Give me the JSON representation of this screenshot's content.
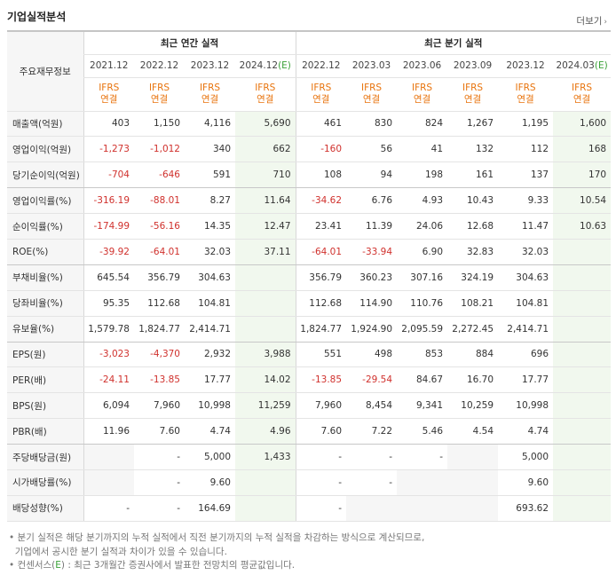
{
  "header": {
    "title": "기업실적분석",
    "more": "더보기",
    "more_icon": "chevron-right-icon"
  },
  "groups": {
    "annual": "최근 연간 실적",
    "quarter": "최근 분기 실적"
  },
  "corner": "주요재무정보",
  "periods": [
    {
      "label": "2021.12",
      "est": ""
    },
    {
      "label": "2022.12",
      "est": ""
    },
    {
      "label": "2023.12",
      "est": ""
    },
    {
      "label": "2024.12",
      "est": "(E)"
    },
    {
      "label": "2022.12",
      "est": ""
    },
    {
      "label": "2023.03",
      "est": ""
    },
    {
      "label": "2023.06",
      "est": ""
    },
    {
      "label": "2023.09",
      "est": ""
    },
    {
      "label": "2023.12",
      "est": ""
    },
    {
      "label": "2024.03",
      "est": "(E)"
    }
  ],
  "ifrs": {
    "line1": "IFRS",
    "line2": "연결"
  },
  "rows": [
    {
      "label": "매출액(억원)",
      "values": [
        "403",
        "1,150",
        "4,116",
        "5,690",
        "461",
        "830",
        "824",
        "1,267",
        "1,195",
        "1,600"
      ]
    },
    {
      "label": "영업이익(억원)",
      "values": [
        "-1,273",
        "-1,012",
        "340",
        "662",
        "-160",
        "56",
        "41",
        "132",
        "112",
        "168"
      ]
    },
    {
      "label": "당기순이익(억원)",
      "values": [
        "-704",
        "-646",
        "591",
        "710",
        "108",
        "94",
        "198",
        "161",
        "137",
        "170"
      ]
    },
    {
      "label": "영업이익률(%)",
      "values": [
        "-316.19",
        "-88.01",
        "8.27",
        "11.64",
        "-34.62",
        "6.76",
        "4.93",
        "10.43",
        "9.33",
        "10.54"
      ]
    },
    {
      "label": "순이익률(%)",
      "values": [
        "-174.99",
        "-56.16",
        "14.35",
        "12.47",
        "23.41",
        "11.39",
        "24.06",
        "12.68",
        "11.47",
        "10.63"
      ]
    },
    {
      "label": "ROE(%)",
      "values": [
        "-39.92",
        "-64.01",
        "32.03",
        "37.11",
        "-64.01",
        "-33.94",
        "6.90",
        "32.83",
        "32.03",
        ""
      ]
    },
    {
      "label": "부채비율(%)",
      "values": [
        "645.54",
        "356.79",
        "304.63",
        "",
        "356.79",
        "360.23",
        "307.16",
        "324.19",
        "304.63",
        ""
      ]
    },
    {
      "label": "당좌비율(%)",
      "values": [
        "95.35",
        "112.68",
        "104.81",
        "",
        "112.68",
        "114.90",
        "110.76",
        "108.21",
        "104.81",
        ""
      ]
    },
    {
      "label": "유보율(%)",
      "values": [
        "1,579.78",
        "1,824.77",
        "2,414.71",
        "",
        "1,824.77",
        "1,924.90",
        "2,095.59",
        "2,272.45",
        "2,414.71",
        ""
      ]
    },
    {
      "label": "EPS(원)",
      "values": [
        "-3,023",
        "-4,370",
        "2,932",
        "3,988",
        "551",
        "498",
        "853",
        "884",
        "696",
        ""
      ]
    },
    {
      "label": "PER(배)",
      "values": [
        "-24.11",
        "-13.85",
        "17.77",
        "14.02",
        "-13.85",
        "-29.54",
        "84.67",
        "16.70",
        "17.77",
        ""
      ]
    },
    {
      "label": "BPS(원)",
      "values": [
        "6,094",
        "7,960",
        "10,998",
        "11,259",
        "7,960",
        "8,454",
        "9,341",
        "10,259",
        "10,998",
        ""
      ]
    },
    {
      "label": "PBR(배)",
      "values": [
        "11.96",
        "7.60",
        "4.74",
        "4.96",
        "7.60",
        "7.22",
        "5.46",
        "4.54",
        "4.74",
        ""
      ]
    },
    {
      "label": "주당배당금(원)",
      "values": [
        "",
        "-",
        "5,000",
        "1,433",
        "-",
        "-",
        "-",
        "",
        "5,000",
        ""
      ]
    },
    {
      "label": "시가배당률(%)",
      "values": [
        "",
        "-",
        "9.60",
        "",
        "-",
        "-",
        "",
        "",
        "9.60",
        ""
      ]
    },
    {
      "label": "배당성향(%)",
      "values": [
        "-",
        "-",
        "164.69",
        "",
        "-",
        "",
        "",
        "",
        "693.62",
        ""
      ]
    }
  ],
  "notes": {
    "n1a": "분기 실적은 해당 분기까지의 누적 실적에서 직전 분기까지의 누적 실적을 차감하는 방식으로 계산되므로,",
    "n1b": "기업에서 공시한 분기 실적과 차이가 있을 수 있습니다.",
    "n2a": "컨센서스(",
    "n2e": "E",
    "n2b": ") : 최근 3개월간 증권사에서 발표한 전망치의 평균값입니다."
  }
}
